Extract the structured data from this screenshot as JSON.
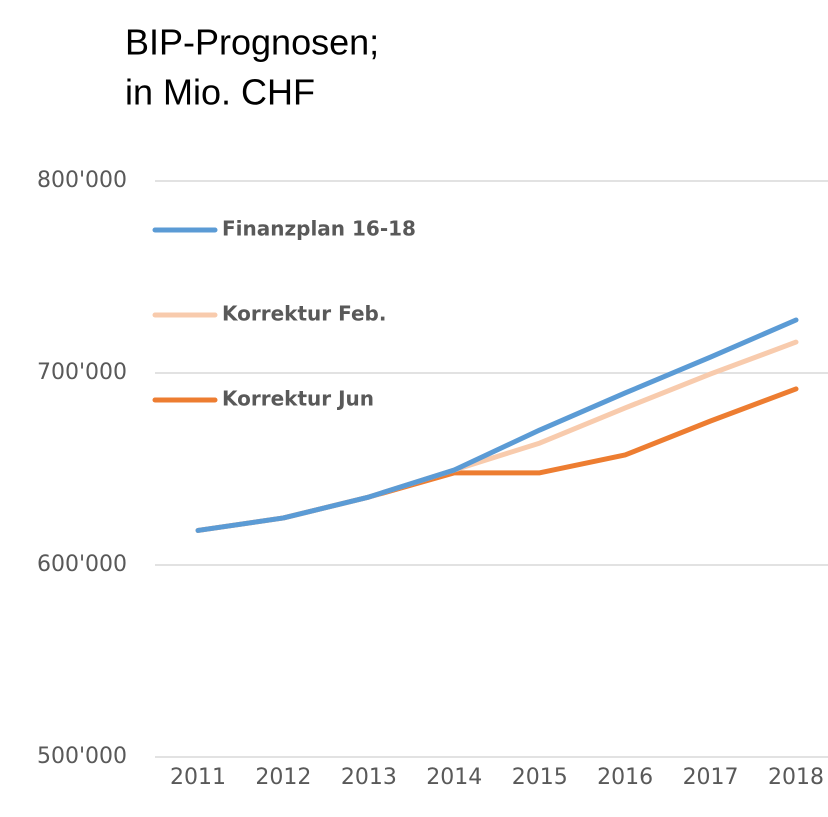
{
  "chart_data": {
    "type": "line",
    "title": "BIP-Prognosen;",
    "subtitle": "in Mio. CHF",
    "categories": [
      "2011",
      "2012",
      "2013",
      "2014",
      "2015",
      "2016",
      "2017",
      "2018"
    ],
    "series": [
      {
        "name": "Finanzplan 16-18",
        "color": "#5b9bd5",
        "values": [
          618000,
          624500,
          635400,
          649500,
          670300,
          689600,
          708300,
          727600
        ]
      },
      {
        "name": "Korrektur Feb.",
        "color": "#f8cbad",
        "values": [
          618000,
          624500,
          635400,
          649500,
          663500,
          681800,
          699500,
          716100
        ]
      },
      {
        "name": "Korrektur Jun",
        "color": "#ed7d31",
        "values": [
          618000,
          624500,
          635400,
          648000,
          648000,
          657300,
          675000,
          691700
        ]
      }
    ],
    "ylim": [
      500000,
      800000
    ],
    "yticks": [
      {
        "value": 500000,
        "label": "500'000"
      },
      {
        "value": 600000,
        "label": "600'000"
      },
      {
        "value": 700000,
        "label": "700'000"
      },
      {
        "value": 800000,
        "label": "800'000"
      }
    ],
    "grid": true,
    "legend": "upper-left"
  }
}
